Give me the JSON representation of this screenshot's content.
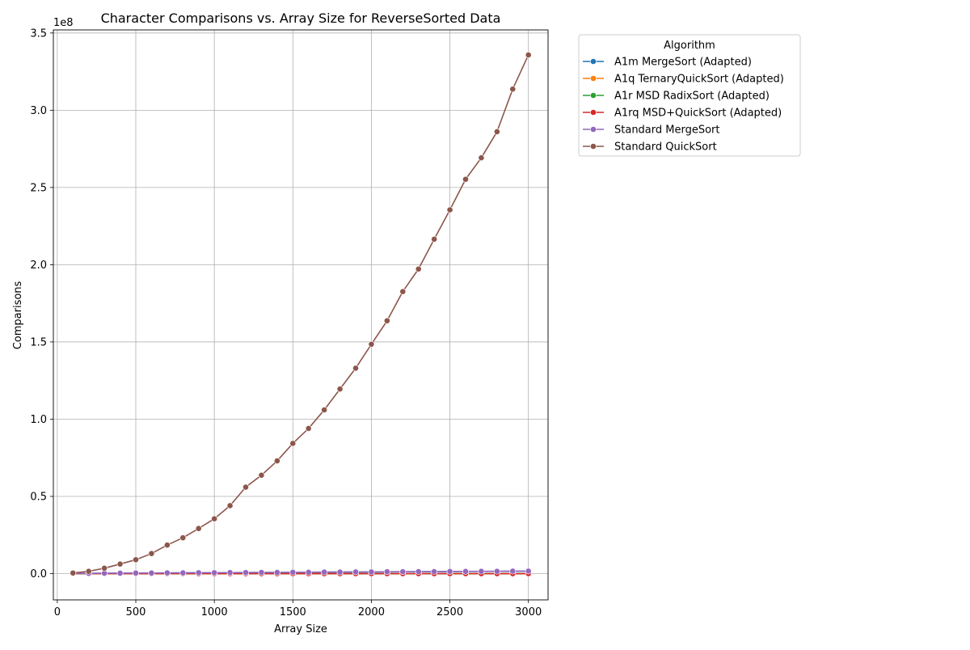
{
  "chart_data": {
    "type": "line",
    "title": "Character Comparisons vs. Array Size for ReverseSorted Data",
    "xlabel": "Array Size",
    "ylabel": "Comparisons",
    "y_offset_label": "1e8",
    "xlim": [
      -25,
      3125
    ],
    "ylim": [
      -0.17,
      3.52
    ],
    "y_unit_multiplier": 100000000,
    "x_ticks": [
      0,
      500,
      1000,
      1500,
      2000,
      2500,
      3000
    ],
    "x_tick_labels": [
      "0",
      "500",
      "1000",
      "1500",
      "2000",
      "2500",
      "3000"
    ],
    "y_ticks": [
      0,
      0.5,
      1.0,
      1.5,
      2.0,
      2.5,
      3.0,
      3.5
    ],
    "y_tick_labels": [
      "0.0",
      "0.5",
      "1.0",
      "1.5",
      "2.0",
      "2.5",
      "3.0",
      "3.5"
    ],
    "grid": true,
    "legend_title": "Algorithm",
    "legend_placement": "outside-top-right",
    "x": [
      100,
      200,
      300,
      400,
      500,
      600,
      700,
      800,
      900,
      1000,
      1100,
      1200,
      1300,
      1400,
      1500,
      1600,
      1700,
      1800,
      1900,
      2000,
      2100,
      2200,
      2300,
      2400,
      2500,
      2600,
      2700,
      2800,
      2900,
      3000
    ],
    "series": [
      {
        "name": "A1m MergeSort (Adapted)",
        "color": "#1f77b4",
        "values": [
          0.001,
          0.002,
          0.002,
          0.003,
          0.003,
          0.004,
          0.004,
          0.005,
          0.005,
          0.006,
          0.006,
          0.007,
          0.007,
          0.008,
          0.008,
          0.009,
          0.009,
          0.01,
          0.01,
          0.011,
          0.011,
          0.012,
          0.012,
          0.013,
          0.013,
          0.014,
          0.014,
          0.015,
          0.015,
          0.016
        ]
      },
      {
        "name": "A1q TernaryQuickSort (Adapted)",
        "color": "#ff7f0e",
        "values": [
          0.0,
          0.0,
          0.0,
          0.0,
          0.0,
          0.0,
          0.0,
          0.0,
          0.0,
          0.0,
          0.0,
          0.0,
          0.0,
          0.0,
          0.0,
          0.0,
          0.0,
          0.0,
          0.0,
          0.0,
          0.0,
          0.0,
          0.0,
          0.0,
          0.0,
          0.0,
          0.0,
          0.0,
          0.0,
          0.0
        ]
      },
      {
        "name": "A1r MSD RadixSort (Adapted)",
        "color": "#2ca02c",
        "values": [
          0.0,
          0.0,
          0.0,
          0.0,
          0.0,
          0.0,
          0.0,
          0.0,
          0.0,
          0.0,
          0.0,
          0.0,
          0.0,
          0.0,
          0.0,
          0.0,
          0.0,
          0.0,
          0.0,
          0.0,
          0.0,
          0.0,
          0.0,
          0.0,
          0.0,
          0.0,
          0.0,
          0.0,
          0.0,
          0.0
        ]
      },
      {
        "name": "A1rq MSD+QuickSort (Adapted)",
        "color": "#d62728",
        "values": [
          0.0,
          0.0,
          0.0,
          0.0,
          0.0,
          0.0,
          0.0,
          0.0,
          0.0,
          0.0,
          0.0,
          0.0,
          0.0,
          0.0,
          0.0,
          0.0,
          0.0,
          0.0,
          0.0,
          0.0,
          0.0,
          0.0,
          0.0,
          0.0,
          0.0,
          0.0,
          0.0,
          0.0,
          0.0,
          0.0
        ]
      },
      {
        "name": "Standard MergeSort",
        "color": "#9467bd",
        "values": [
          0.001,
          0.002,
          0.003,
          0.003,
          0.004,
          0.004,
          0.005,
          0.005,
          0.006,
          0.006,
          0.007,
          0.007,
          0.008,
          0.008,
          0.009,
          0.009,
          0.01,
          0.01,
          0.011,
          0.011,
          0.012,
          0.012,
          0.013,
          0.013,
          0.014,
          0.014,
          0.015,
          0.015,
          0.016,
          0.016
        ]
      },
      {
        "name": "Standard QuickSort",
        "color": "#8c564b",
        "values": [
          0.004,
          0.015,
          0.035,
          0.062,
          0.09,
          0.13,
          0.185,
          0.232,
          0.292,
          0.355,
          0.44,
          0.56,
          0.637,
          0.73,
          0.843,
          0.94,
          1.06,
          1.195,
          1.33,
          1.485,
          1.637,
          1.826,
          1.972,
          2.165,
          2.355,
          2.553,
          2.692,
          2.861,
          3.137,
          3.358
        ]
      }
    ]
  }
}
